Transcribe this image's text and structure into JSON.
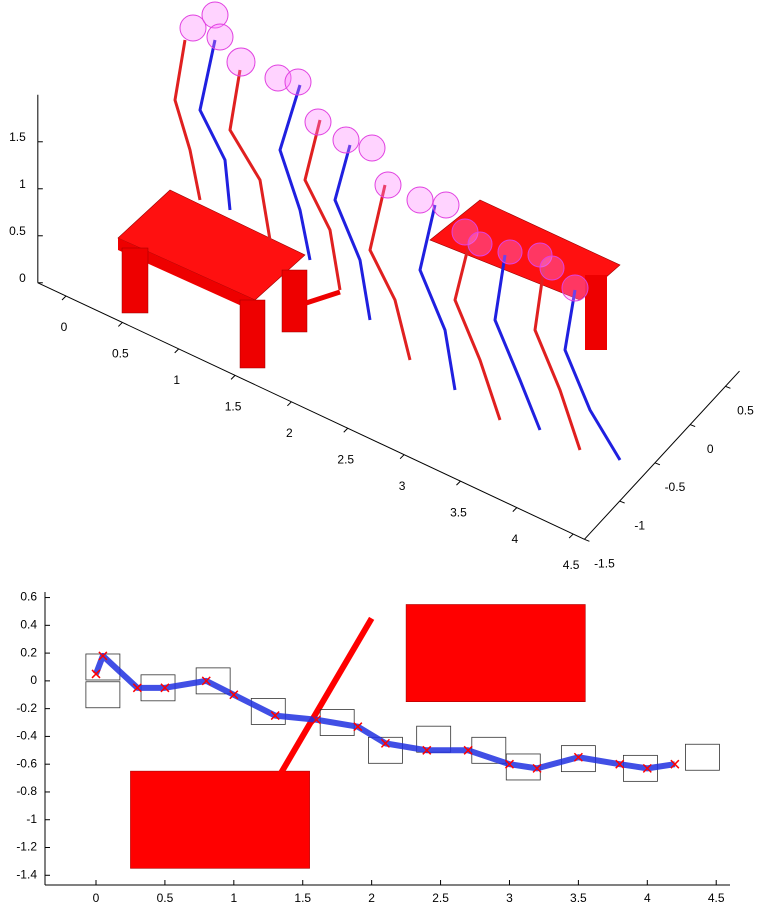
{
  "chart_data": [
    {
      "type": "scene3d",
      "xlim": [
        -0.25,
        4.6
      ],
      "ylim": [
        -1.5,
        0.7
      ],
      "zlim": [
        0,
        2
      ],
      "xticks": [
        0,
        0.5,
        1,
        1.5,
        2,
        2.5,
        3,
        3.5,
        4,
        4.5
      ],
      "yticks": [
        -1.5,
        -1,
        -0.5,
        0,
        0.5
      ],
      "zticks": [
        0,
        0.5,
        1,
        1.5
      ]
    },
    {
      "type": "line",
      "x": [
        0,
        0.05,
        0.3,
        0.5,
        0.8,
        1.0,
        1.3,
        1.6,
        1.9,
        2.1,
        2.4,
        2.7,
        3.0,
        3.2,
        3.5,
        3.8,
        4.0,
        4.2
      ],
      "values": [
        0.05,
        0.18,
        -0.05,
        -0.05,
        0,
        -0.1,
        -0.25,
        -0.28,
        -0.33,
        -0.45,
        -0.5,
        -0.5,
        -0.6,
        -0.63,
        -0.55,
        -0.6,
        -0.63,
        -0.6
      ],
      "color": "#2030e0",
      "marker_color": "#ff0000",
      "footsteps_x": [
        0.05,
        0.05,
        0.45,
        0.85,
        1.25,
        1.75,
        2.1,
        2.45,
        2.85,
        3.1,
        3.5,
        3.95,
        4.4
      ],
      "footsteps_y": [
        0.1,
        -0.1,
        -0.05,
        0.0,
        -0.22,
        -0.3,
        -0.5,
        -0.42,
        -0.5,
        -0.62,
        -0.56,
        -0.63,
        -0.55
      ],
      "obstacles": [
        {
          "x": [
            0.25,
            1.55
          ],
          "y": [
            -1.35,
            -0.65
          ]
        },
        {
          "x": [
            2.25,
            3.55
          ],
          "y": [
            -0.15,
            0.55
          ]
        }
      ],
      "pole": {
        "x": [
          1.25,
          2.0
        ],
        "y": [
          -0.82,
          0.45
        ]
      },
      "obstacle_color": "#ff0000",
      "xlim": [
        -0.37,
        4.6
      ],
      "ylim": [
        -1.47,
        0.64
      ],
      "xticks": [
        0,
        0.5,
        1,
        1.5,
        2,
        2.5,
        3,
        3.5,
        4,
        4.5
      ],
      "yticks": [
        0.6,
        0.4,
        0.2,
        0,
        -0.2,
        -0.4,
        -0.6,
        -0.8,
        -1,
        -1.2,
        -1.4
      ]
    }
  ]
}
